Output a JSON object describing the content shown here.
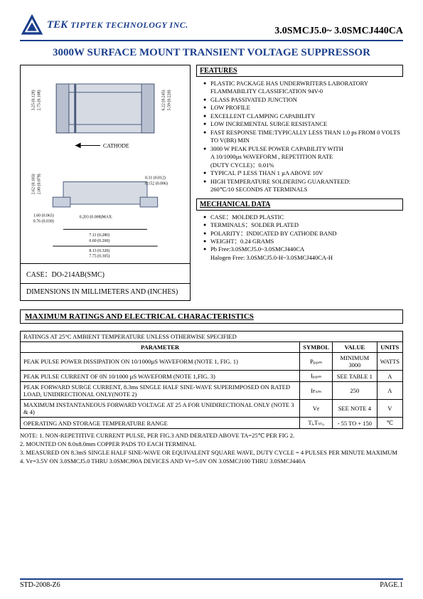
{
  "header": {
    "company_prefix": "TEK",
    "company_name": "TIPTEK TECHNOLOGY INC.",
    "part_range": "3.0SMCJ5.0~  3.0SMCJ440CA",
    "logo_colors": {
      "triangle": "#1a3e8c",
      "accent": "#ffffff"
    }
  },
  "title": "3000W SURFACE MOUNT TRANSIENT VOLTAGE SUPPRESSOR",
  "package": {
    "case_label": "CASE：DO-214AB(SMC)",
    "dim_note": "DIMENSIONS IN MILLIMETERS AND (INCHES)",
    "cathode_label": "CATHODE",
    "dims": {
      "top_h1": "3.25 (0.128)",
      "top_h2": "2.75 (0.108)",
      "top_w1": "6.22 (0.245)",
      "top_w2": "5.59 (0.220)",
      "side_h1": "2.62 (0.103)",
      "side_h2": "2.00 (0.079)",
      "lead_h1": "1.60 (0.063)",
      "lead_h2": "0.76 (0.030)",
      "standoff": "0.203 (0.008)MAX.",
      "lead_t1": "0.31 (0.012)",
      "lead_t2": "0.152 (0.006)",
      "body_w1": "7.11 (0.280)",
      "body_w2": "6.60 (0.260)",
      "total_w1": "8.13 (0.320)",
      "total_w2": "7.75 (0.305)"
    },
    "colors": {
      "body_fill": "#d5dae3",
      "line": "#4a5a7a"
    }
  },
  "features": {
    "header": "FEATURES",
    "items": [
      "PLASTIC PACKAGE HAS UNDERWRITERS LABORATORY",
      "FLAMMABILITY CLASSIFICATION 94V-0",
      "GLASS PASSIVATED JUNCTION",
      "LOW PROFILE",
      "EXCELLENT CLAMPING CAPABILITY",
      "LOW INCREMENTAL SURGE RESISTANCE",
      "FAST RESPONSE TIME:TYPICALLY LESS THAN 1.0 ps FROM   0 VOLTS TO V(BR) MIN",
      "3000 W PEAK PULSE POWER CAPABILITY WITH",
      "A 10/1000µs WAVEFORM , REPETITION RATE",
      "(DUTY CYCLE)：0.01%",
      "TYPICAL Iᴿ LESS THAN 1 µA ABOVE 10V",
      "HIGH TEMPERATURE SOLDERING GUARANTEED:",
      "260℃/10 SECONDS AT TERMINALS"
    ],
    "nobullet_indices": [
      1,
      8,
      9,
      12
    ]
  },
  "mechanical": {
    "header": "MECHANICAL DATA",
    "items": [
      "CASE：MOLDED PLASTIC",
      "TERMINALS：SOLDER PLATED",
      "POLARITY：INDICATED BY CATHODE BAND",
      "WEIGHT：0.24 GRAMS",
      "Pb Free:3.0SMCJ5.0~3.0SMCJ440CA",
      "Halogen   Free: 3.0SMCJ5.0-H~3.0SMCJ440CA-H"
    ],
    "nobullet_indices": [
      5
    ]
  },
  "ratings": {
    "header": "MAXIMUM RATINGS AND ELECTRICAL CHARACTERISTICS",
    "caption": "RATINGS AT 25°C AMBIENT TEMPERATURE UNLESS OTHERWISE SPECIFIED",
    "columns": [
      "PARAMETER",
      "SYMBOL",
      "VALUE",
      "UNITS"
    ],
    "rows": [
      {
        "param": "PEAK PULSE POWER DISSIPATION ON 10/1000µS WAVEFORM (NOTE 1, FIG. 1)",
        "symbol": "Pₚₚₘ",
        "value": "MINIMUM 3000",
        "units": "WATTS"
      },
      {
        "param": "PEAK PULSE CURRENT OF 0N 10/1000 µS WAVEFORM (NOTE 1,FIG. 3)",
        "symbol": "Iₚₚₘ",
        "value": "SEE TABLE 1",
        "units": "A"
      },
      {
        "param": "PEAK FORWARD SURGE CURRENT, 8.3ms SINGLE HALF SINE-WAVE SUPERIMPOSED ON RATED LOAD, UNIDIRECTIONAL ONLY(NOTE 2)",
        "symbol": "Iғₛₘ",
        "value": "250",
        "units": "A"
      },
      {
        "param": "MAXIMUM INSTANTANEOUS FORWARD VOLTAGE AT 25 A FOR UNIDIRECTIONAL ONLY (NOTE 3 & 4)",
        "symbol": "Vғ",
        "value": "SEE NOTE 4",
        "units": "V"
      },
      {
        "param": "OPERATING AND STORAGE TEMPERATURE RANGE",
        "symbol": "Tⱼ,Tₛₜ₉",
        "value": "- 55 TO + 150",
        "units": "℃"
      }
    ]
  },
  "notes": {
    "label": "NOTE:",
    "lines": [
      "1. NON-REPETITIVE CURRENT PULSE, PER FIG.3 AND DERATED ABOVE TA=25℃ PER FIG 2.",
      "2. MOUNTED ON 8.0x8.0mm COPPER PADS TO EACH TERMINAL",
      "3. MEASURED ON 8.3mS SINGLE HALF SINE-WAVE OR EQUIVALENT SQUARE WAVE, DUTY CYCLE = 4 PULSES PER MINUTE MAXIMUM",
      "4. Vғ=3.5V ON 3.0SMCJ5.0 THRU 3.0SMCJ90A DEVICES AND Vғ=5.0V ON 3.0SMCJ100 THRU 3.0SMCJ440A"
    ]
  },
  "footer": {
    "std": "STD-2008-Z6",
    "page": "PAGE.1"
  },
  "colors": {
    "brand": "#1a3e8c",
    "text": "#000000",
    "watermark": "#d8e0ee"
  }
}
